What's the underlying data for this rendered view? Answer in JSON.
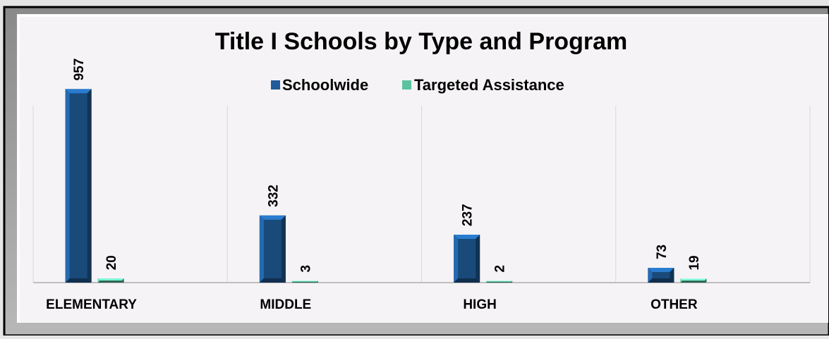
{
  "chart_data": {
    "type": "bar",
    "title": "Title I Schools by Type and Program",
    "categories": [
      "ELEMENTARY",
      "MIDDLE",
      "HIGH",
      "OTHER"
    ],
    "series": [
      {
        "name": "Schoolwide",
        "values": [
          957,
          332,
          237,
          73
        ],
        "color": "#1f5c99"
      },
      {
        "name": "Targeted Assistance",
        "values": [
          20,
          3,
          2,
          19
        ],
        "color": "#5bc2a0"
      }
    ],
    "data_labels": [
      [
        "957",
        "332",
        "237",
        "73"
      ],
      [
        "20",
        "3",
        "2",
        "19"
      ]
    ],
    "ylim": [
      0,
      1000
    ],
    "xlabel": "",
    "ylabel": "",
    "legend": "top-center",
    "grid": "vertical category separators"
  }
}
